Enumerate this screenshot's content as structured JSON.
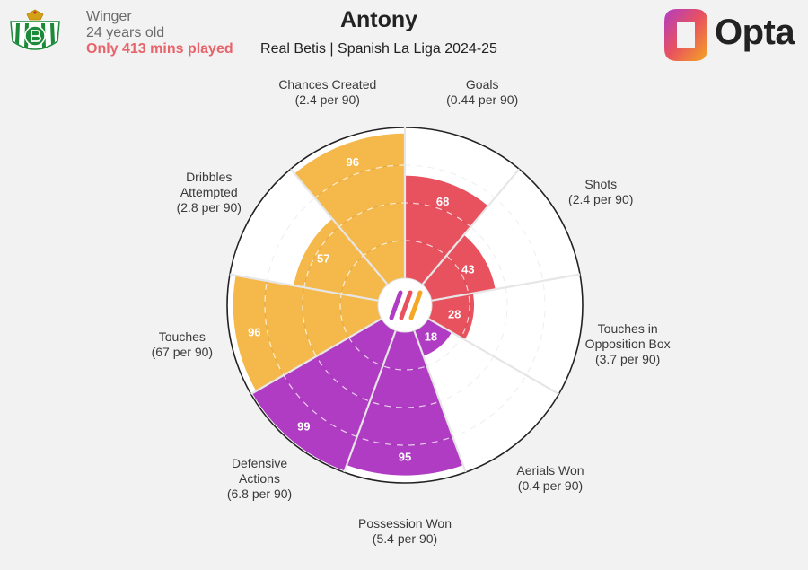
{
  "header": {
    "position": "Winger",
    "age": "24 years old",
    "minutes_warning": "Only 413 mins played",
    "title": "Antony",
    "subtitle": "Real Betis | Spanish La Liga 2024-25",
    "brand": "Opta"
  },
  "colors": {
    "background": "#f2f2f2",
    "attacking": "#e8525e",
    "creative": "#f5b94b",
    "defensive": "#b13cc4",
    "ring": "#dcdcdc"
  },
  "chart_data": {
    "type": "polar-bar",
    "scale": [
      0,
      100
    ],
    "segments": [
      {
        "metric": "Goals",
        "rate": "(0.44 per 90)",
        "value": 68,
        "group": "attacking"
      },
      {
        "metric": "Shots",
        "rate": "(2.4 per 90)",
        "value": 43,
        "group": "attacking"
      },
      {
        "metric": "Touches in Opposition Box",
        "line1": "Touches in",
        "line2": "Opposition Box",
        "rate": "(3.7 per 90)",
        "value": 28,
        "group": "attacking"
      },
      {
        "metric": "Aerials Won",
        "rate": "(0.4 per 90)",
        "value": 18,
        "group": "defensive"
      },
      {
        "metric": "Possession Won",
        "rate": "(5.4 per 90)",
        "value": 95,
        "group": "defensive"
      },
      {
        "metric": "Defensive Actions",
        "line1": "Defensive",
        "line2": "Actions",
        "rate": "(6.8 per 90)",
        "value": 99,
        "group": "defensive"
      },
      {
        "metric": "Touches",
        "rate": "(67 per 90)",
        "value": 96,
        "group": "creative"
      },
      {
        "metric": "Dribbles Attempted",
        "line1": "Dribbles",
        "line2": "Attempted",
        "rate": "(2.8 per 90)",
        "value": 57,
        "group": "creative"
      },
      {
        "metric": "Chances Created",
        "rate": "(2.4 per 90)",
        "value": 96,
        "group": "creative"
      }
    ]
  }
}
